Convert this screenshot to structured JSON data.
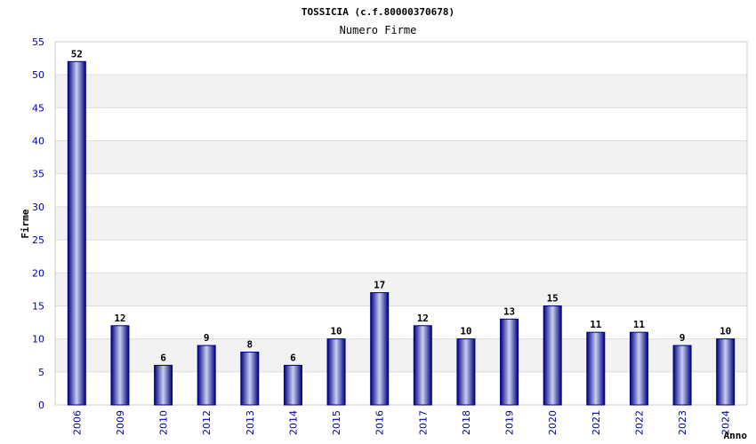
{
  "chart_data": {
    "type": "bar",
    "title": "TOSSICIA (c.f.80000370678)",
    "subtitle": "Numero Firme",
    "xlabel": "Anno",
    "ylabel": "Firme",
    "categories": [
      "2006",
      "2009",
      "2010",
      "2012",
      "2013",
      "2014",
      "2015",
      "2016",
      "2017",
      "2018",
      "2019",
      "2020",
      "2021",
      "2022",
      "2023",
      "2024"
    ],
    "values": [
      52,
      12,
      6,
      9,
      8,
      6,
      10,
      17,
      12,
      10,
      13,
      15,
      11,
      11,
      9,
      10
    ],
    "ylim": [
      0,
      55
    ],
    "yticks": [
      0,
      5,
      10,
      15,
      20,
      25,
      30,
      35,
      40,
      45,
      50,
      55
    ],
    "grid": true,
    "colors": {
      "bar_dark": "#000080",
      "bar_light": "#c8d0f0",
      "tick_text": "#0000a0",
      "band": "#f2f2f2",
      "gridline": "#dddddd"
    }
  }
}
